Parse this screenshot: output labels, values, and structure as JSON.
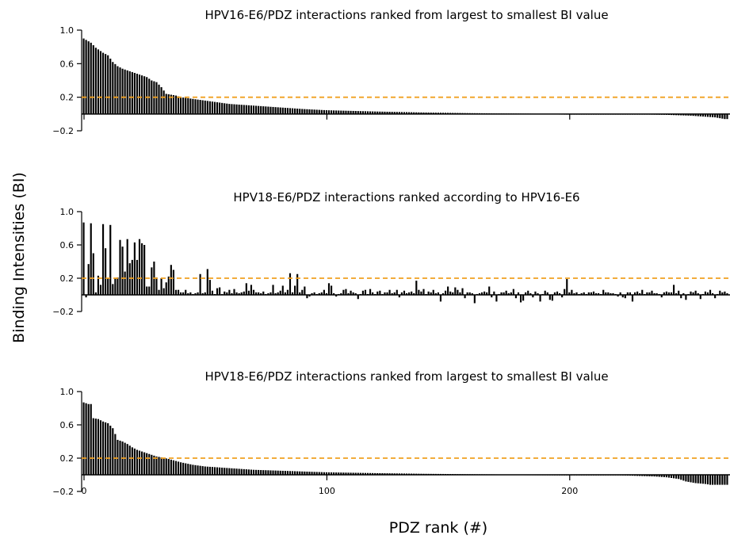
{
  "figure": {
    "ylabel": "Binding Intensities (BI)",
    "xlabel": "PDZ rank (#)",
    "colors": {
      "bars": "#000000",
      "threshold": "#f0a020",
      "background": "#ffffff"
    }
  },
  "chart_data": [
    {
      "type": "bar",
      "title": "HPV16-E6/PDZ interactions ranked from largest to smallest BI value",
      "ylabel": "Binding Intensities (BI)",
      "ylim": [
        -0.2,
        1.0
      ],
      "yticks": [
        1.0,
        0.6,
        0.2,
        -0.2
      ],
      "ytick_labels": [
        "1.0",
        "0.6",
        "0.2",
        "−0.2"
      ],
      "xticks": [
        0,
        100,
        200
      ],
      "xtick_labels": [],
      "xlim": [
        -1,
        265
      ],
      "threshold": 0.2,
      "anchors": [
        [
          0,
          0.9
        ],
        [
          3,
          0.85
        ],
        [
          5,
          0.79
        ],
        [
          8,
          0.73
        ],
        [
          10,
          0.7
        ],
        [
          12,
          0.62
        ],
        [
          14,
          0.57
        ],
        [
          16,
          0.54
        ],
        [
          18,
          0.52
        ],
        [
          20,
          0.5
        ],
        [
          22,
          0.48
        ],
        [
          24,
          0.46
        ],
        [
          26,
          0.44
        ],
        [
          28,
          0.4
        ],
        [
          30,
          0.38
        ],
        [
          32,
          0.32
        ],
        [
          34,
          0.24
        ],
        [
          36,
          0.23
        ],
        [
          38,
          0.22
        ],
        [
          40,
          0.2
        ],
        [
          45,
          0.18
        ],
        [
          50,
          0.16
        ],
        [
          55,
          0.14
        ],
        [
          60,
          0.12
        ],
        [
          70,
          0.1
        ],
        [
          80,
          0.08
        ],
        [
          90,
          0.06
        ],
        [
          100,
          0.045
        ],
        [
          120,
          0.03
        ],
        [
          140,
          0.018
        ],
        [
          160,
          0.01
        ],
        [
          180,
          0.005
        ],
        [
          200,
          0.0
        ],
        [
          225,
          -0.005
        ],
        [
          240,
          -0.01
        ],
        [
          250,
          -0.02
        ],
        [
          255,
          -0.03
        ],
        [
          260,
          -0.04
        ],
        [
          264,
          -0.06
        ]
      ]
    },
    {
      "type": "bar",
      "title": "HPV18-E6/PDZ interactions ranked according to HPV16-E6",
      "ylabel": "Binding Intensities (BI)",
      "ylim": [
        -0.2,
        1.0
      ],
      "yticks": [
        1.0,
        0.6,
        0.2,
        -0.2
      ],
      "ytick_labels": [
        "1.0",
        "0.6",
        "0.2",
        "−0.2"
      ],
      "xticks": [],
      "xtick_labels": [],
      "xlim": [
        -1,
        265
      ],
      "threshold": 0.2,
      "spikes": [
        [
          0,
          0.87
        ],
        [
          1,
          -0.03
        ],
        [
          2,
          0.37
        ],
        [
          3,
          0.86
        ],
        [
          4,
          0.5
        ],
        [
          6,
          0.23
        ],
        [
          7,
          0.12
        ],
        [
          8,
          0.85
        ],
        [
          9,
          0.56
        ],
        [
          10,
          0.2
        ],
        [
          11,
          0.84
        ],
        [
          12,
          0.13
        ],
        [
          13,
          0.2
        ],
        [
          14,
          0.21
        ],
        [
          15,
          0.66
        ],
        [
          16,
          0.58
        ],
        [
          17,
          0.28
        ],
        [
          18,
          0.67
        ],
        [
          19,
          0.38
        ],
        [
          20,
          0.42
        ],
        [
          21,
          0.63
        ],
        [
          22,
          0.42
        ],
        [
          23,
          0.67
        ],
        [
          24,
          0.62
        ],
        [
          25,
          0.6
        ],
        [
          26,
          0.1
        ],
        [
          27,
          0.1
        ],
        [
          28,
          0.33
        ],
        [
          29,
          0.4
        ],
        [
          30,
          0.21
        ],
        [
          31,
          0.06
        ],
        [
          32,
          0.2
        ],
        [
          33,
          0.08
        ],
        [
          34,
          0.15
        ],
        [
          35,
          0.22
        ],
        [
          36,
          0.36
        ],
        [
          37,
          0.3
        ],
        [
          38,
          0.06
        ],
        [
          39,
          0.06
        ],
        [
          40,
          0.03
        ],
        [
          42,
          0.06
        ],
        [
          48,
          0.25
        ],
        [
          50,
          0.03
        ],
        [
          51,
          0.31
        ],
        [
          52,
          0.18
        ],
        [
          53,
          0.05
        ],
        [
          55,
          0.08
        ],
        [
          56,
          0.09
        ],
        [
          58,
          0.04
        ],
        [
          60,
          0.06
        ],
        [
          62,
          0.07
        ],
        [
          63,
          0.03
        ],
        [
          66,
          0.04
        ],
        [
          67,
          0.14
        ],
        [
          68,
          0.05
        ],
        [
          69,
          0.12
        ],
        [
          70,
          0.06
        ],
        [
          72,
          0.03
        ],
        [
          74,
          0.04
        ],
        [
          78,
          0.12
        ],
        [
          81,
          0.05
        ],
        [
          82,
          0.11
        ],
        [
          84,
          0.06
        ],
        [
          85,
          0.26
        ],
        [
          86,
          0.03
        ],
        [
          87,
          0.11
        ],
        [
          88,
          0.25
        ],
        [
          89,
          0.03
        ],
        [
          90,
          0.06
        ],
        [
          91,
          0.1
        ],
        [
          92,
          -0.04
        ],
        [
          93,
          -0.02
        ],
        [
          97,
          0.02
        ],
        [
          99,
          0.06
        ],
        [
          101,
          0.14
        ],
        [
          102,
          0.11
        ],
        [
          104,
          -0.02
        ],
        [
          107,
          0.06
        ],
        [
          108,
          0.07
        ],
        [
          110,
          0.05
        ],
        [
          111,
          0.03
        ],
        [
          113,
          -0.05
        ],
        [
          115,
          0.05
        ],
        [
          116,
          0.06
        ],
        [
          118,
          0.07
        ],
        [
          121,
          0.04
        ],
        [
          122,
          0.05
        ],
        [
          124,
          0.03
        ],
        [
          126,
          0.06
        ],
        [
          128,
          0.03
        ],
        [
          129,
          0.06
        ],
        [
          130,
          -0.03
        ],
        [
          132,
          0.05
        ],
        [
          135,
          0.04
        ],
        [
          137,
          0.17
        ],
        [
          138,
          0.06
        ],
        [
          139,
          0.04
        ],
        [
          140,
          0.07
        ],
        [
          142,
          0.04
        ],
        [
          144,
          0.06
        ],
        [
          147,
          -0.08
        ],
        [
          149,
          0.05
        ],
        [
          150,
          0.1
        ],
        [
          151,
          0.04
        ],
        [
          153,
          0.09
        ],
        [
          154,
          0.06
        ],
        [
          156,
          0.08
        ],
        [
          157,
          -0.04
        ],
        [
          159,
          0.03
        ],
        [
          161,
          -0.1
        ],
        [
          163,
          0.02
        ],
        [
          165,
          0.04
        ],
        [
          166,
          0.03
        ],
        [
          167,
          0.1
        ],
        [
          168,
          -0.03
        ],
        [
          169,
          0.04
        ],
        [
          170,
          -0.08
        ],
        [
          172,
          0.03
        ],
        [
          174,
          0.05
        ],
        [
          176,
          0.03
        ],
        [
          177,
          0.07
        ],
        [
          178,
          -0.04
        ],
        [
          180,
          -0.09
        ],
        [
          181,
          -0.07
        ],
        [
          183,
          0.05
        ],
        [
          185,
          -0.03
        ],
        [
          186,
          0.04
        ],
        [
          188,
          -0.08
        ],
        [
          190,
          0.05
        ],
        [
          192,
          -0.06
        ],
        [
          193,
          -0.07
        ],
        [
          195,
          0.04
        ],
        [
          197,
          -0.03
        ],
        [
          198,
          0.07
        ],
        [
          199,
          0.19
        ],
        [
          201,
          0.06
        ],
        [
          203,
          0.03
        ],
        [
          205,
          0.02
        ],
        [
          208,
          0.03
        ],
        [
          210,
          0.04
        ],
        [
          212,
          0.02
        ],
        [
          214,
          0.06
        ],
        [
          216,
          0.03
        ],
        [
          218,
          0.02
        ],
        [
          220,
          -0.02
        ],
        [
          222,
          -0.03
        ],
        [
          223,
          -0.04
        ],
        [
          225,
          0.03
        ],
        [
          226,
          -0.08
        ],
        [
          228,
          0.04
        ],
        [
          230,
          0.06
        ],
        [
          232,
          0.03
        ],
        [
          234,
          0.05
        ],
        [
          236,
          0.02
        ],
        [
          238,
          -0.03
        ],
        [
          240,
          0.04
        ],
        [
          241,
          0.03
        ],
        [
          243,
          0.12
        ],
        [
          245,
          0.05
        ],
        [
          246,
          -0.04
        ],
        [
          248,
          -0.06
        ],
        [
          250,
          0.04
        ],
        [
          252,
          0.05
        ],
        [
          254,
          -0.05
        ],
        [
          256,
          0.04
        ],
        [
          258,
          0.06
        ],
        [
          260,
          -0.04
        ],
        [
          262,
          0.05
        ],
        [
          264,
          0.04
        ]
      ]
    },
    {
      "type": "bar",
      "title": "HPV18-E6/PDZ interactions ranked from largest to smallest BI value",
      "ylabel": "Binding Intensities (BI)",
      "ylim": [
        -0.2,
        1.0
      ],
      "yticks": [
        1.0,
        0.6,
        0.2,
        -0.2
      ],
      "ytick_labels": [
        "1.0",
        "0.6",
        "0.2",
        "−0.2"
      ],
      "xticks": [
        0,
        100,
        200
      ],
      "xtick_labels": [
        "0",
        "100",
        "200"
      ],
      "xlim": [
        -1,
        265
      ],
      "threshold": 0.2,
      "anchors": [
        [
          0,
          0.87
        ],
        [
          1,
          0.86
        ],
        [
          2,
          0.85
        ],
        [
          3,
          0.85
        ],
        [
          4,
          0.68
        ],
        [
          6,
          0.67
        ],
        [
          8,
          0.64
        ],
        [
          10,
          0.62
        ],
        [
          12,
          0.56
        ],
        [
          14,
          0.42
        ],
        [
          16,
          0.4
        ],
        [
          18,
          0.37
        ],
        [
          20,
          0.33
        ],
        [
          22,
          0.3
        ],
        [
          24,
          0.28
        ],
        [
          26,
          0.26
        ],
        [
          28,
          0.24
        ],
        [
          30,
          0.22
        ],
        [
          32,
          0.21
        ],
        [
          35,
          0.19
        ],
        [
          40,
          0.15
        ],
        [
          45,
          0.12
        ],
        [
          50,
          0.1
        ],
        [
          60,
          0.08
        ],
        [
          70,
          0.06
        ],
        [
          80,
          0.05
        ],
        [
          90,
          0.04
        ],
        [
          100,
          0.03
        ],
        [
          120,
          0.02
        ],
        [
          140,
          0.012
        ],
        [
          160,
          0.007
        ],
        [
          180,
          0.003
        ],
        [
          200,
          0.0
        ],
        [
          215,
          -0.005
        ],
        [
          225,
          -0.01
        ],
        [
          235,
          -0.02
        ],
        [
          240,
          -0.03
        ],
        [
          245,
          -0.05
        ],
        [
          248,
          -0.08
        ],
        [
          252,
          -0.1
        ],
        [
          256,
          -0.11
        ],
        [
          258,
          -0.12
        ]
      ]
    }
  ]
}
